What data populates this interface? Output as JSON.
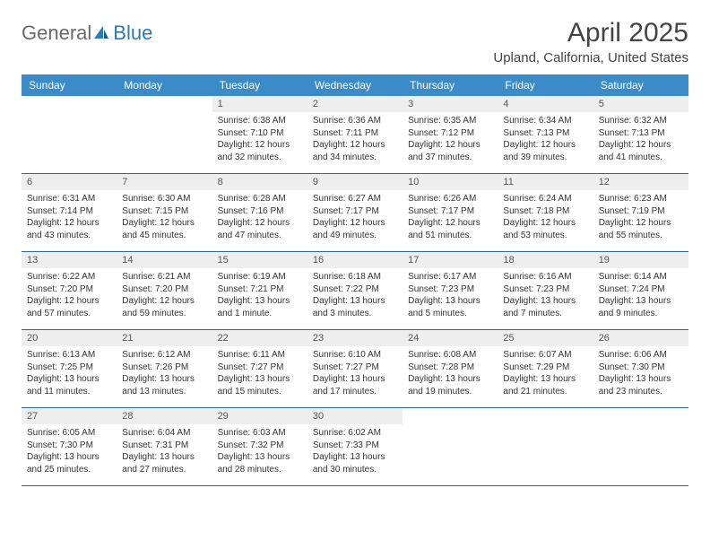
{
  "logo": {
    "general": "General",
    "blue": "Blue"
  },
  "title": "April 2025",
  "location": "Upland, California, United States",
  "colors": {
    "header_bg": "#3b8bc8",
    "daynum_bg": "#eeeeee",
    "border": "#2a6a9a",
    "text": "#333333",
    "logo_gray": "#6a6a6a",
    "logo_blue": "#2a7ab8"
  },
  "day_headers": [
    "Sunday",
    "Monday",
    "Tuesday",
    "Wednesday",
    "Thursday",
    "Friday",
    "Saturday"
  ],
  "weeks": [
    [
      {
        "n": "",
        "sr": "",
        "ss": "",
        "dl": ""
      },
      {
        "n": "",
        "sr": "",
        "ss": "",
        "dl": ""
      },
      {
        "n": "1",
        "sr": "Sunrise: 6:38 AM",
        "ss": "Sunset: 7:10 PM",
        "dl": "Daylight: 12 hours and 32 minutes."
      },
      {
        "n": "2",
        "sr": "Sunrise: 6:36 AM",
        "ss": "Sunset: 7:11 PM",
        "dl": "Daylight: 12 hours and 34 minutes."
      },
      {
        "n": "3",
        "sr": "Sunrise: 6:35 AM",
        "ss": "Sunset: 7:12 PM",
        "dl": "Daylight: 12 hours and 37 minutes."
      },
      {
        "n": "4",
        "sr": "Sunrise: 6:34 AM",
        "ss": "Sunset: 7:13 PM",
        "dl": "Daylight: 12 hours and 39 minutes."
      },
      {
        "n": "5",
        "sr": "Sunrise: 6:32 AM",
        "ss": "Sunset: 7:13 PM",
        "dl": "Daylight: 12 hours and 41 minutes."
      }
    ],
    [
      {
        "n": "6",
        "sr": "Sunrise: 6:31 AM",
        "ss": "Sunset: 7:14 PM",
        "dl": "Daylight: 12 hours and 43 minutes."
      },
      {
        "n": "7",
        "sr": "Sunrise: 6:30 AM",
        "ss": "Sunset: 7:15 PM",
        "dl": "Daylight: 12 hours and 45 minutes."
      },
      {
        "n": "8",
        "sr": "Sunrise: 6:28 AM",
        "ss": "Sunset: 7:16 PM",
        "dl": "Daylight: 12 hours and 47 minutes."
      },
      {
        "n": "9",
        "sr": "Sunrise: 6:27 AM",
        "ss": "Sunset: 7:17 PM",
        "dl": "Daylight: 12 hours and 49 minutes."
      },
      {
        "n": "10",
        "sr": "Sunrise: 6:26 AM",
        "ss": "Sunset: 7:17 PM",
        "dl": "Daylight: 12 hours and 51 minutes."
      },
      {
        "n": "11",
        "sr": "Sunrise: 6:24 AM",
        "ss": "Sunset: 7:18 PM",
        "dl": "Daylight: 12 hours and 53 minutes."
      },
      {
        "n": "12",
        "sr": "Sunrise: 6:23 AM",
        "ss": "Sunset: 7:19 PM",
        "dl": "Daylight: 12 hours and 55 minutes."
      }
    ],
    [
      {
        "n": "13",
        "sr": "Sunrise: 6:22 AM",
        "ss": "Sunset: 7:20 PM",
        "dl": "Daylight: 12 hours and 57 minutes."
      },
      {
        "n": "14",
        "sr": "Sunrise: 6:21 AM",
        "ss": "Sunset: 7:20 PM",
        "dl": "Daylight: 12 hours and 59 minutes."
      },
      {
        "n": "15",
        "sr": "Sunrise: 6:19 AM",
        "ss": "Sunset: 7:21 PM",
        "dl": "Daylight: 13 hours and 1 minute."
      },
      {
        "n": "16",
        "sr": "Sunrise: 6:18 AM",
        "ss": "Sunset: 7:22 PM",
        "dl": "Daylight: 13 hours and 3 minutes."
      },
      {
        "n": "17",
        "sr": "Sunrise: 6:17 AM",
        "ss": "Sunset: 7:23 PM",
        "dl": "Daylight: 13 hours and 5 minutes."
      },
      {
        "n": "18",
        "sr": "Sunrise: 6:16 AM",
        "ss": "Sunset: 7:23 PM",
        "dl": "Daylight: 13 hours and 7 minutes."
      },
      {
        "n": "19",
        "sr": "Sunrise: 6:14 AM",
        "ss": "Sunset: 7:24 PM",
        "dl": "Daylight: 13 hours and 9 minutes."
      }
    ],
    [
      {
        "n": "20",
        "sr": "Sunrise: 6:13 AM",
        "ss": "Sunset: 7:25 PM",
        "dl": "Daylight: 13 hours and 11 minutes."
      },
      {
        "n": "21",
        "sr": "Sunrise: 6:12 AM",
        "ss": "Sunset: 7:26 PM",
        "dl": "Daylight: 13 hours and 13 minutes."
      },
      {
        "n": "22",
        "sr": "Sunrise: 6:11 AM",
        "ss": "Sunset: 7:27 PM",
        "dl": "Daylight: 13 hours and 15 minutes."
      },
      {
        "n": "23",
        "sr": "Sunrise: 6:10 AM",
        "ss": "Sunset: 7:27 PM",
        "dl": "Daylight: 13 hours and 17 minutes."
      },
      {
        "n": "24",
        "sr": "Sunrise: 6:08 AM",
        "ss": "Sunset: 7:28 PM",
        "dl": "Daylight: 13 hours and 19 minutes."
      },
      {
        "n": "25",
        "sr": "Sunrise: 6:07 AM",
        "ss": "Sunset: 7:29 PM",
        "dl": "Daylight: 13 hours and 21 minutes."
      },
      {
        "n": "26",
        "sr": "Sunrise: 6:06 AM",
        "ss": "Sunset: 7:30 PM",
        "dl": "Daylight: 13 hours and 23 minutes."
      }
    ],
    [
      {
        "n": "27",
        "sr": "Sunrise: 6:05 AM",
        "ss": "Sunset: 7:30 PM",
        "dl": "Daylight: 13 hours and 25 minutes."
      },
      {
        "n": "28",
        "sr": "Sunrise: 6:04 AM",
        "ss": "Sunset: 7:31 PM",
        "dl": "Daylight: 13 hours and 27 minutes."
      },
      {
        "n": "29",
        "sr": "Sunrise: 6:03 AM",
        "ss": "Sunset: 7:32 PM",
        "dl": "Daylight: 13 hours and 28 minutes."
      },
      {
        "n": "30",
        "sr": "Sunrise: 6:02 AM",
        "ss": "Sunset: 7:33 PM",
        "dl": "Daylight: 13 hours and 30 minutes."
      },
      {
        "n": "",
        "sr": "",
        "ss": "",
        "dl": ""
      },
      {
        "n": "",
        "sr": "",
        "ss": "",
        "dl": ""
      },
      {
        "n": "",
        "sr": "",
        "ss": "",
        "dl": ""
      }
    ]
  ]
}
